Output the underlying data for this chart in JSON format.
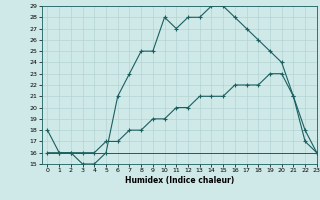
{
  "xlabel": "Humidex (Indice chaleur)",
  "ylabel": "",
  "bg_color": "#cfe8e8",
  "line_color": "#1a5f5f",
  "xlim": [
    -0.5,
    23
  ],
  "ylim": [
    15,
    29
  ],
  "xticks": [
    0,
    1,
    2,
    3,
    4,
    5,
    6,
    7,
    8,
    9,
    10,
    11,
    12,
    13,
    14,
    15,
    16,
    17,
    18,
    19,
    20,
    21,
    22,
    23
  ],
  "yticks": [
    15,
    16,
    17,
    18,
    19,
    20,
    21,
    22,
    23,
    24,
    25,
    26,
    27,
    28,
    29
  ],
  "line1_x": [
    0,
    1,
    2,
    3,
    4,
    5,
    6,
    7,
    8,
    9,
    10,
    11,
    12,
    13,
    14,
    15,
    16,
    17,
    18,
    19,
    20,
    21,
    22,
    23
  ],
  "line1_y": [
    18,
    16,
    16,
    15,
    15,
    16,
    21,
    23,
    25,
    25,
    28,
    27,
    28,
    28,
    29,
    29,
    28,
    27,
    26,
    25,
    24,
    21,
    17,
    16
  ],
  "line2_x": [
    0,
    1,
    2,
    3,
    4,
    5,
    6,
    7,
    8,
    9,
    10,
    11,
    12,
    13,
    14,
    15,
    16,
    17,
    18,
    19,
    20,
    21,
    22,
    23
  ],
  "line2_y": [
    16,
    16,
    16,
    16,
    16,
    16,
    16,
    16,
    16,
    16,
    16,
    16,
    16,
    16,
    16,
    16,
    16,
    16,
    16,
    16,
    16,
    16,
    16,
    16
  ],
  "line3_x": [
    0,
    1,
    2,
    3,
    4,
    5,
    6,
    7,
    8,
    9,
    10,
    11,
    12,
    13,
    14,
    15,
    16,
    17,
    18,
    19,
    20,
    21,
    22,
    23
  ],
  "line3_y": [
    16,
    16,
    16,
    16,
    16,
    17,
    17,
    18,
    18,
    19,
    19,
    20,
    20,
    21,
    21,
    21,
    22,
    22,
    22,
    23,
    23,
    21,
    18,
    16
  ]
}
